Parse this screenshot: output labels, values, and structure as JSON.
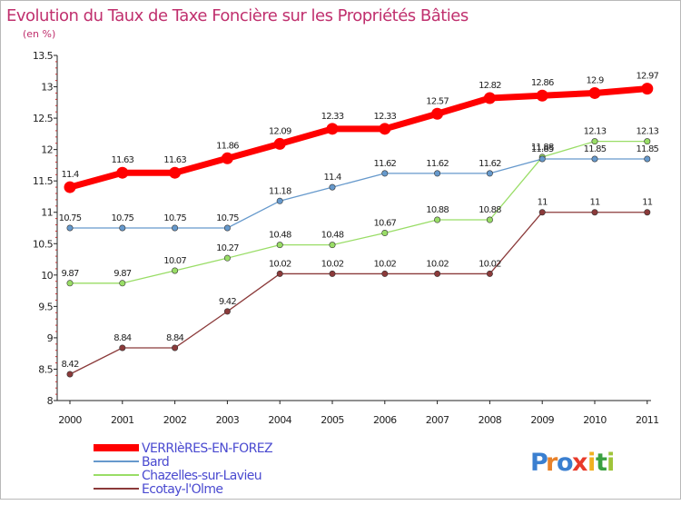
{
  "chart_data": {
    "type": "line",
    "title": "Evolution du Taux de Taxe Foncière sur les Propriétés Bâties",
    "subtitle": "(en %)",
    "x": [
      "2000",
      "2001",
      "2002",
      "2003",
      "2004",
      "2005",
      "2006",
      "2007",
      "2008",
      "2009",
      "2010",
      "2011"
    ],
    "ylim": [
      8,
      13.5
    ],
    "yticks": [
      "8",
      "8.5",
      "9",
      "9.5",
      "10",
      "10.5",
      "11",
      "11.5",
      "12",
      "12.5",
      "13",
      "13.5"
    ],
    "series": [
      {
        "name": "VERRIèRES-EN-FOREZ",
        "color": "#ff0000",
        "values": [
          11.4,
          11.63,
          11.63,
          11.86,
          12.09,
          12.33,
          12.33,
          12.57,
          12.82,
          12.86,
          12.9,
          12.97
        ],
        "labels": [
          "11.4",
          "11.63",
          "11.63",
          "11.86",
          "12.09",
          "12.33",
          "12.33",
          "12.57",
          "12.82",
          "12.86",
          "12.9",
          "12.97"
        ]
      },
      {
        "name": "Bard",
        "color": "#6699cc",
        "values": [
          10.75,
          10.75,
          10.75,
          10.75,
          11.18,
          11.4,
          11.62,
          11.62,
          11.62,
          11.85,
          11.85,
          11.85
        ],
        "labels": [
          "10.75",
          "10.75",
          "10.75",
          "10.75",
          "11.18",
          "11.4",
          "11.62",
          "11.62",
          "11.62",
          "11.85",
          "11.85",
          "11.85"
        ]
      },
      {
        "name": "Chazelles-sur-Lavieu",
        "color": "#99dd66",
        "values": [
          9.87,
          9.87,
          10.07,
          10.27,
          10.48,
          10.48,
          10.67,
          10.88,
          10.88,
          11.88,
          12.13,
          12.13
        ],
        "labels": [
          "9.87",
          "9.87",
          "10.07",
          "10.27",
          "10.48",
          "10.48",
          "10.67",
          "10.88",
          "10.88",
          "11.88",
          "12.13",
          "12.13"
        ]
      },
      {
        "name": "Ecotay-l'Olme",
        "color": "#8b3a3a",
        "values": [
          8.42,
          8.84,
          8.84,
          9.42,
          10.02,
          10.02,
          10.02,
          10.02,
          10.02,
          11,
          11,
          11
        ],
        "labels": [
          "8.42",
          "8.84",
          "8.84",
          "9.42",
          "10.02",
          "10.02",
          "10.02",
          "10.02",
          "10.02",
          "11",
          "11",
          "11"
        ]
      }
    ],
    "grid": false,
    "legend": "bottom-left"
  },
  "logo": {
    "text": "Proxiti",
    "letters": [
      "P",
      "r",
      "o",
      "x",
      "i",
      "t",
      "i"
    ],
    "colors": [
      "#3a7fd0",
      "#e8822a",
      "#3a7fd0",
      "#e83a2a",
      "#f0b020",
      "#3aa040",
      "#9fc43a"
    ]
  }
}
